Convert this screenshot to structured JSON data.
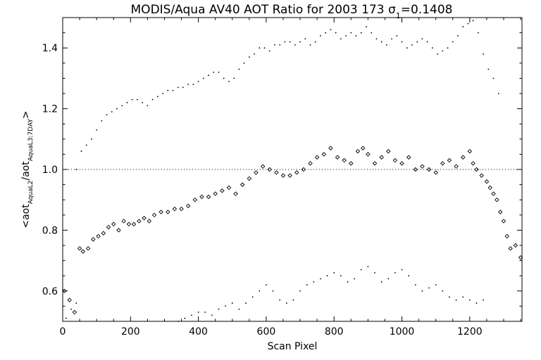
{
  "chart_data": {
    "type": "scatter",
    "title_main": "MODIS/Aqua AV40 AOT Ratio for 2003 173 ",
    "title_sigma": "σ",
    "title_sigma_sub": "1",
    "title_value": "=0.1408",
    "xlabel": "Scan Pixel",
    "ylabel_prefix": "<aot",
    "ylabel_sub1": "AquaL2",
    "ylabel_mid": "/aot",
    "ylabel_sub2": "AquaL3:7DAY",
    "ylabel_suffix": ">",
    "xlim": [
      0,
      1354
    ],
    "ylim": [
      0.5,
      1.5
    ],
    "x_ticks": [
      "0",
      "200",
      "400",
      "600",
      "800",
      "1000",
      "1200"
    ],
    "x_tick_values": [
      0,
      200,
      400,
      600,
      800,
      1000,
      1200
    ],
    "y_ticks": [
      "0.6",
      "0.8",
      "1.0",
      "1.2",
      "1.4"
    ],
    "y_tick_values": [
      0.6,
      0.8,
      1.0,
      1.2,
      1.4
    ],
    "reference_line": 1.0,
    "grid": false,
    "series": [
      {
        "role": "mean",
        "marker": "diamond",
        "x": [
          5,
          20,
          35,
          50,
          60,
          75,
          90,
          105,
          120,
          135,
          150,
          165,
          180,
          195,
          210,
          225,
          240,
          255,
          270,
          290,
          310,
          330,
          350,
          370,
          390,
          410,
          430,
          450,
          470,
          490,
          510,
          530,
          550,
          570,
          590,
          610,
          630,
          650,
          670,
          690,
          710,
          730,
          750,
          770,
          790,
          810,
          830,
          850,
          870,
          885,
          900,
          920,
          940,
          960,
          980,
          1000,
          1020,
          1040,
          1060,
          1080,
          1100,
          1120,
          1140,
          1160,
          1180,
          1200,
          1210,
          1220,
          1235,
          1250,
          1260,
          1270,
          1280,
          1290,
          1300,
          1310,
          1320,
          1335,
          1350
        ],
        "y": [
          0.6,
          0.57,
          0.53,
          0.74,
          0.73,
          0.74,
          0.77,
          0.78,
          0.79,
          0.81,
          0.82,
          0.8,
          0.83,
          0.82,
          0.82,
          0.83,
          0.84,
          0.83,
          0.85,
          0.86,
          0.86,
          0.87,
          0.87,
          0.88,
          0.9,
          0.91,
          0.91,
          0.92,
          0.93,
          0.94,
          0.92,
          0.95,
          0.97,
          0.99,
          1.01,
          1.0,
          0.99,
          0.98,
          0.98,
          0.99,
          1.0,
          1.02,
          1.04,
          1.05,
          1.07,
          1.04,
          1.03,
          1.02,
          1.06,
          1.07,
          1.05,
          1.02,
          1.04,
          1.06,
          1.03,
          1.02,
          1.04,
          1.0,
          1.01,
          1.0,
          0.99,
          1.02,
          1.03,
          1.01,
          1.04,
          1.06,
          1.02,
          1.0,
          0.98,
          0.96,
          0.94,
          0.92,
          0.9,
          0.86,
          0.83,
          0.78,
          0.74,
          0.75,
          0.71
        ]
      },
      {
        "role": "upper",
        "marker": "dot",
        "x": [
          40,
          55,
          70,
          85,
          100,
          115,
          130,
          145,
          160,
          175,
          190,
          205,
          220,
          235,
          250,
          265,
          280,
          295,
          310,
          325,
          340,
          355,
          370,
          385,
          400,
          415,
          430,
          445,
          460,
          475,
          490,
          505,
          520,
          535,
          550,
          565,
          580,
          595,
          610,
          625,
          640,
          655,
          670,
          685,
          700,
          715,
          730,
          745,
          760,
          775,
          790,
          805,
          820,
          835,
          850,
          865,
          880,
          895,
          910,
          925,
          940,
          955,
          970,
          985,
          1000,
          1015,
          1030,
          1045,
          1060,
          1075,
          1090,
          1105,
          1120,
          1135,
          1150,
          1165,
          1180,
          1195,
          1210,
          1225,
          1240,
          1255,
          1270,
          1285
        ],
        "y": [
          1.0,
          1.06,
          1.08,
          1.1,
          1.13,
          1.16,
          1.18,
          1.19,
          1.2,
          1.21,
          1.22,
          1.23,
          1.23,
          1.22,
          1.21,
          1.23,
          1.24,
          1.25,
          1.26,
          1.26,
          1.27,
          1.27,
          1.28,
          1.28,
          1.29,
          1.3,
          1.31,
          1.32,
          1.32,
          1.3,
          1.29,
          1.3,
          1.33,
          1.35,
          1.37,
          1.38,
          1.4,
          1.4,
          1.39,
          1.41,
          1.41,
          1.42,
          1.42,
          1.41,
          1.42,
          1.43,
          1.41,
          1.42,
          1.44,
          1.45,
          1.46,
          1.45,
          1.43,
          1.44,
          1.45,
          1.44,
          1.45,
          1.47,
          1.45,
          1.43,
          1.42,
          1.41,
          1.43,
          1.44,
          1.42,
          1.4,
          1.41,
          1.42,
          1.43,
          1.42,
          1.4,
          1.38,
          1.39,
          1.4,
          1.42,
          1.44,
          1.47,
          1.48,
          1.49,
          1.45,
          1.38,
          1.33,
          1.3,
          1.25
        ]
      },
      {
        "role": "lower",
        "marker": "dot",
        "x": [
          10,
          25,
          40,
          340,
          360,
          380,
          400,
          420,
          440,
          460,
          480,
          500,
          520,
          540,
          560,
          580,
          600,
          620,
          640,
          660,
          680,
          700,
          720,
          740,
          760,
          780,
          800,
          820,
          840,
          860,
          880,
          900,
          920,
          940,
          960,
          980,
          1000,
          1020,
          1040,
          1060,
          1080,
          1100,
          1120,
          1140,
          1160,
          1180,
          1200,
          1220,
          1240
        ],
        "y": [
          0.51,
          0.54,
          0.56,
          0.5,
          0.51,
          0.52,
          0.53,
          0.53,
          0.52,
          0.54,
          0.55,
          0.56,
          0.54,
          0.56,
          0.58,
          0.6,
          0.62,
          0.6,
          0.57,
          0.56,
          0.57,
          0.6,
          0.62,
          0.63,
          0.64,
          0.65,
          0.66,
          0.65,
          0.63,
          0.64,
          0.67,
          0.68,
          0.66,
          0.63,
          0.64,
          0.66,
          0.67,
          0.65,
          0.62,
          0.6,
          0.61,
          0.62,
          0.6,
          0.58,
          0.57,
          0.58,
          0.57,
          0.56,
          0.57
        ]
      }
    ]
  }
}
